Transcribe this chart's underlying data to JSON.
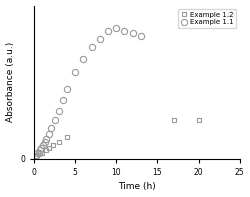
{
  "title": "",
  "xlabel": "Time (h)",
  "ylabel": "Absorbance (a.u.)",
  "xlim": [
    0,
    25
  ],
  "ylim": [
    0,
    0.55
  ],
  "background_color": "#ffffff",
  "example_11": {
    "x": [
      0.2,
      0.4,
      0.6,
      0.7,
      0.9,
      1.1,
      1.3,
      1.5,
      1.8,
      2.1,
      2.5,
      3.0,
      3.5,
      4.0,
      5.0,
      6.0,
      7.0,
      8.0,
      9.0,
      10.0,
      11.0,
      12.0,
      13.0,
      24.0
    ],
    "y": [
      0.01,
      0.02,
      0.02,
      0.03,
      0.04,
      0.05,
      0.06,
      0.07,
      0.09,
      0.11,
      0.14,
      0.17,
      0.21,
      0.25,
      0.31,
      0.36,
      0.4,
      0.43,
      0.46,
      0.47,
      0.46,
      0.45,
      0.44,
      0.52
    ],
    "marker": "o",
    "color": "#999999",
    "markersize": 4.5,
    "label": "Example 1.1"
  },
  "example_12": {
    "x": [
      0.3,
      0.7,
      1.0,
      1.4,
      1.8,
      2.3,
      3.0,
      4.0,
      17.0,
      20.0
    ],
    "y": [
      0.01,
      0.02,
      0.02,
      0.03,
      0.04,
      0.05,
      0.06,
      0.08,
      0.14,
      0.14
    ],
    "marker": "s",
    "color": "#999999",
    "markersize": 3.5,
    "label": "Example 1.2"
  },
  "legend_labels": [
    "Example 1.2",
    "Example 1.1"
  ],
  "legend_loc": "upper right"
}
